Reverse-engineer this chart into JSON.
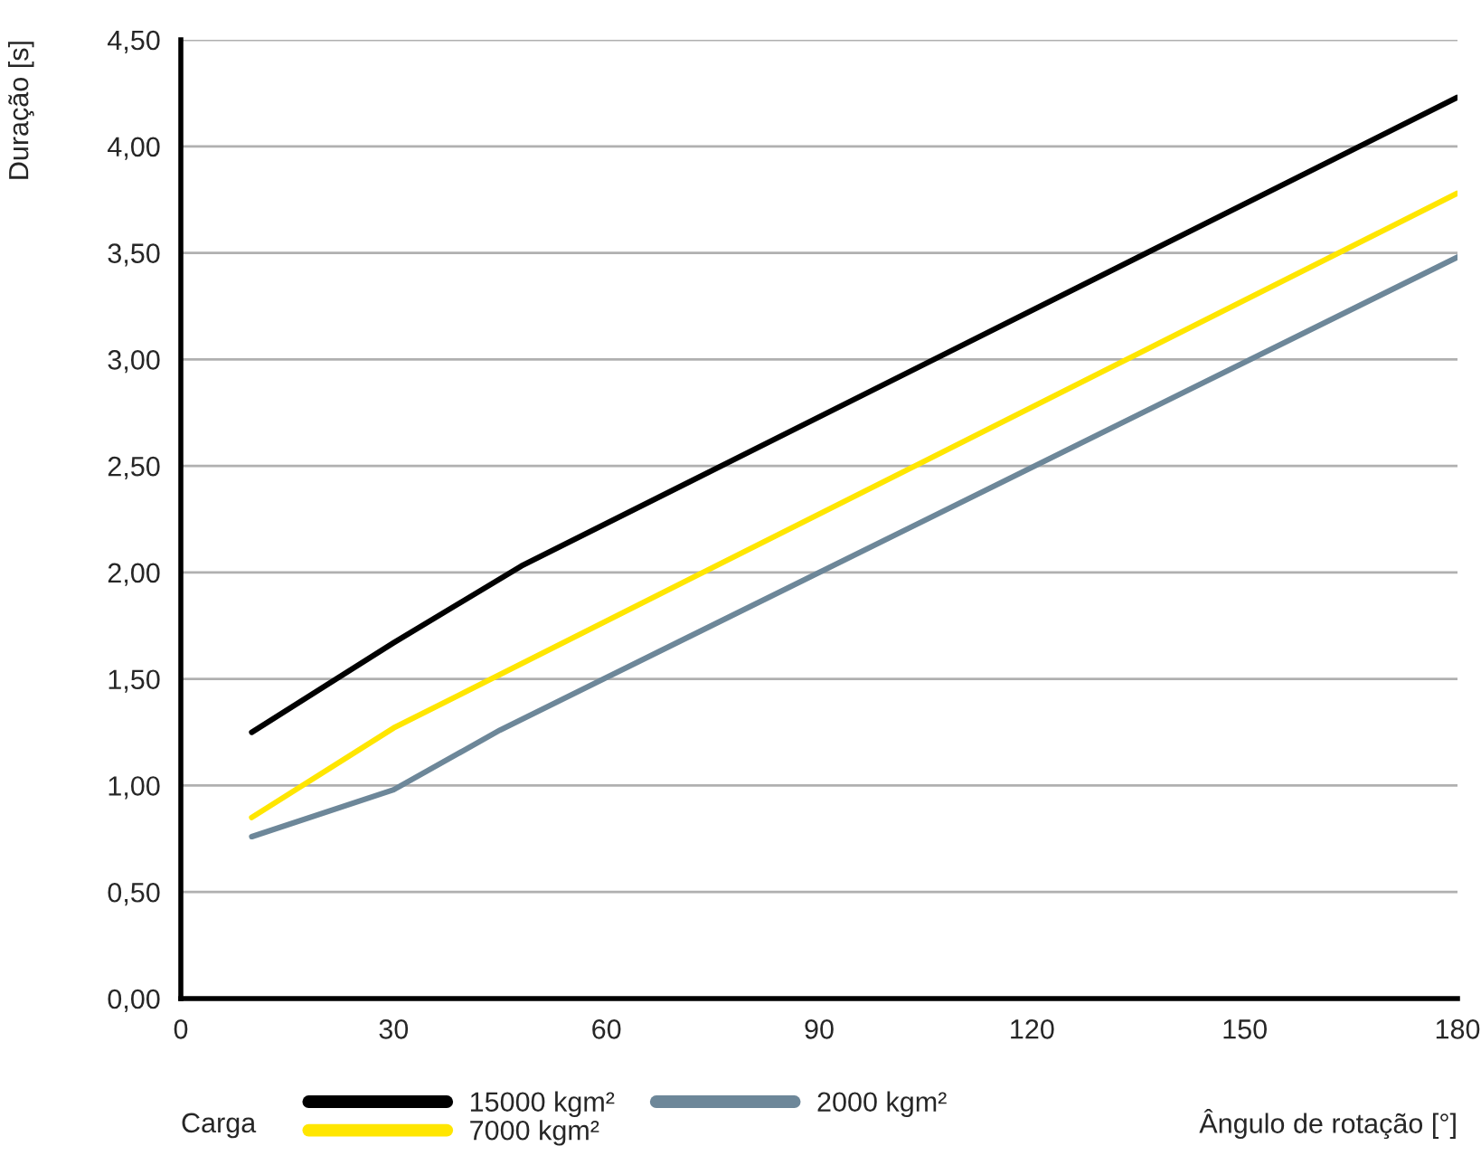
{
  "chart_data": {
    "type": "line",
    "xlabel": "Ângulo de rotação [°]",
    "ylabel": "Duração [s]",
    "legend_title": "Carga",
    "series": [
      {
        "name": "15000 kgm²",
        "color": "#000000",
        "x": [
          10,
          30,
          48,
          180
        ],
        "values": [
          1.25,
          1.67,
          2.03,
          4.23
        ]
      },
      {
        "name": "7000 kgm²",
        "color": "#ffe600",
        "x": [
          10,
          30,
          180
        ],
        "values": [
          0.85,
          1.27,
          3.78
        ]
      },
      {
        "name": "2000 kgm²",
        "color": "#6d8799",
        "x": [
          10,
          30,
          45,
          180
        ],
        "values": [
          0.76,
          0.98,
          1.26,
          3.48
        ]
      }
    ],
    "xlim": [
      0,
      180
    ],
    "xticks": [
      0,
      30,
      60,
      90,
      120,
      150,
      180
    ],
    "ylim": [
      0,
      4.5
    ],
    "yticks": [
      {
        "value": 0,
        "label": "0,00"
      },
      {
        "value": 0.5,
        "label": "0,50"
      },
      {
        "value": 1,
        "label": "1,00"
      },
      {
        "value": 1.5,
        "label": "1,50"
      },
      {
        "value": 2,
        "label": "2,00"
      },
      {
        "value": 2.5,
        "label": "2,50"
      },
      {
        "value": 3,
        "label": "3,00"
      },
      {
        "value": 3.5,
        "label": "3,50"
      },
      {
        "value": 4,
        "label": "4,00"
      },
      {
        "value": 4.5,
        "label": "4,50"
      }
    ],
    "grid": "y",
    "legend": "bottom",
    "marker": "none",
    "line_style": "solid"
  }
}
